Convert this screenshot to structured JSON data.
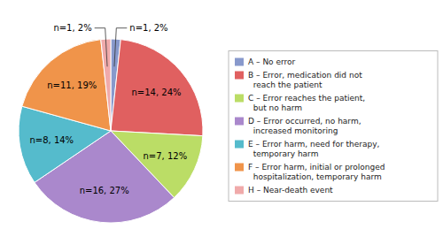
{
  "chart_data": {
    "type": "pie",
    "categories": [
      "A – No error",
      "B – Error, medication did not\n  reach the patient",
      "C – Error reaches the patient,\n  but no harm",
      "D – Error occurred, no harm,\n  increased monitoring",
      "E – Error harm, need for therapy,\n  temporary harm",
      "F – Error harm, initial or prolonged\n  hospitalization, temporary harm",
      "H – Near-death event"
    ],
    "values": [
      1,
      14,
      7,
      16,
      8,
      11,
      1
    ],
    "value_labels": [
      "n=1, 2%",
      "n=14, 24%",
      "n=7, 12%",
      "n=16, 27%",
      "n=8, 14%",
      "n=11, 19%",
      "n=1, 2%"
    ],
    "colors": [
      "#8899CC",
      "#E06060",
      "#BBDD66",
      "#AA88CC",
      "#55BBCC",
      "#F0944A",
      "#F0AAAA"
    ],
    "data_labels": true,
    "legend": "right"
  }
}
